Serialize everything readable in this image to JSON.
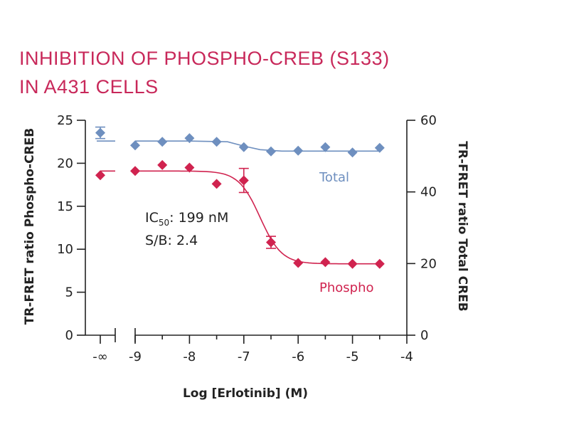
{
  "chart_data": {
    "type": "scatter",
    "title": [
      "INHIBITION OF PHOSPHO-CREB (S133)",
      "IN A431 CELLS"
    ],
    "xlabel": "Log [Erlotinib] (M)",
    "ylabel_left": "TR-FRET ratio Phospho-CREB",
    "ylabel_right": "TR-FRET ratio Total CREB",
    "x_ticks": [
      "-∞",
      "-9",
      "-8",
      "-7",
      "-6",
      "-5",
      "-4"
    ],
    "x_range": [
      -9,
      -4
    ],
    "y_left_ticks": [
      "0",
      "5",
      "10",
      "15",
      "20",
      "25"
    ],
    "y_left_range": [
      0,
      25
    ],
    "y_right_ticks": [
      "0",
      "20",
      "40",
      "60"
    ],
    "y_right_range": [
      0,
      60
    ],
    "grid": false,
    "annotations": {
      "ic50_prefix": "IC",
      "ic50_sub": "50",
      "ic50_value": ": 199 nM",
      "sb": "S/B: 2.4"
    },
    "series": [
      {
        "name": "Total",
        "axis": "right",
        "color": "#6e8fbf",
        "marker": "diamond",
        "control_value": 56.5,
        "control_error": 1.6,
        "x": [
          -9,
          -8.5,
          -8,
          -7.5,
          -7,
          -6.5,
          -6,
          -5.5,
          -5,
          -4.5
        ],
        "y": [
          53,
          54,
          55,
          54,
          52.5,
          51.3,
          51.5,
          52.5,
          51,
          52.3
        ],
        "fit": [
          [
            -9,
            54.2
          ],
          [
            -8,
            54.2
          ],
          [
            -7.3,
            54
          ],
          [
            -7,
            52.8
          ],
          [
            -6.7,
            51.8
          ],
          [
            -6.3,
            51.4
          ],
          [
            -5,
            51.4
          ],
          [
            -4.5,
            51.4
          ]
        ]
      },
      {
        "name": "Phospho",
        "axis": "left",
        "color": "#d0234f",
        "marker": "diamond",
        "control_value": 18.6,
        "x": [
          -9,
          -8.5,
          -8,
          -7.5,
          -7,
          -6.5,
          -6,
          -5.5,
          -5,
          -4.5
        ],
        "y": [
          19.1,
          19.8,
          19.5,
          17.6,
          18,
          10.8,
          8.4,
          8.5,
          8.3,
          8.3
        ],
        "errors": [
          0,
          0,
          0,
          0,
          1.4,
          0.7,
          0,
          0,
          0,
          0
        ],
        "ic50_log": -6.7,
        "fit": {
          "top": 19.1,
          "bottom": 8.3,
          "hill": 2.2
        }
      }
    ]
  }
}
